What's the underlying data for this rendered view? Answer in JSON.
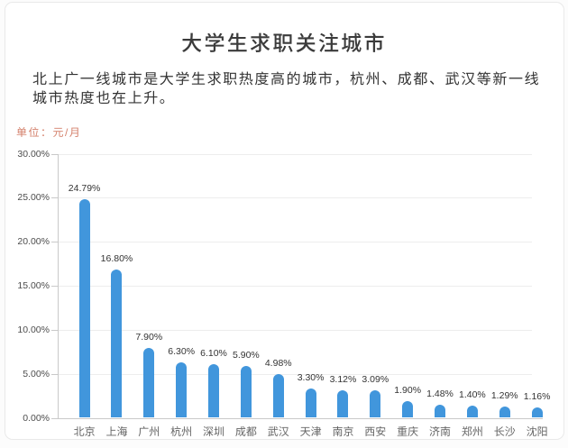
{
  "page": {
    "title": "大学生求职关注城市",
    "subtitle": "北上广一线城市是大学生求职热度高的城市，杭州、成都、武汉等新一线城市热度也在上升。",
    "unit_label": "单位：元/月"
  },
  "colors": {
    "bar": "#4196DC",
    "unit_label": "#D4806B",
    "title": "#3B3B3B",
    "subtitle": "#333333",
    "axis": "#C9C9C9",
    "grid": "#EDEDED",
    "y_label": "#4D4D4D",
    "x_label": "#666666",
    "value_label": "#333333",
    "card_border": "#E9E9E9",
    "card_background": "#FFFFFF"
  },
  "chart_data": {
    "type": "bar",
    "title": "大学生求职关注城市",
    "subtitle": "北上广一线城市是大学生求职热度高的城市，杭州、成都、武汉等新一线城市热度也在上升。",
    "unit_label": "单位：元/月",
    "categories": [
      "北京",
      "上海",
      "广州",
      "杭州",
      "深圳",
      "成都",
      "武汉",
      "天津",
      "南京",
      "西安",
      "重庆",
      "济南",
      "郑州",
      "长沙",
      "沈阳"
    ],
    "values": [
      24.79,
      16.8,
      7.9,
      6.3,
      6.1,
      5.9,
      4.98,
      3.3,
      3.12,
      3.09,
      1.9,
      1.48,
      1.4,
      1.29,
      1.16
    ],
    "value_labels": [
      "24.79%",
      "16.80%",
      "7.90%",
      "6.30%",
      "6.10%",
      "5.90%",
      "4.98%",
      "3.30%",
      "3.12%",
      "3.09%",
      "1.90%",
      "1.48%",
      "1.40%",
      "1.29%",
      "1.16%"
    ],
    "xlabel": "",
    "ylabel": "",
    "ylim": [
      0,
      30
    ],
    "ytick_step": 5,
    "ytick_labels": [
      "0.00%",
      "5.00%",
      "10.00%",
      "15.00%",
      "20.00%",
      "25.00%",
      "30.00%"
    ],
    "grid": "horizontal-light",
    "legend": "none",
    "bar_color": "#4196DC"
  }
}
